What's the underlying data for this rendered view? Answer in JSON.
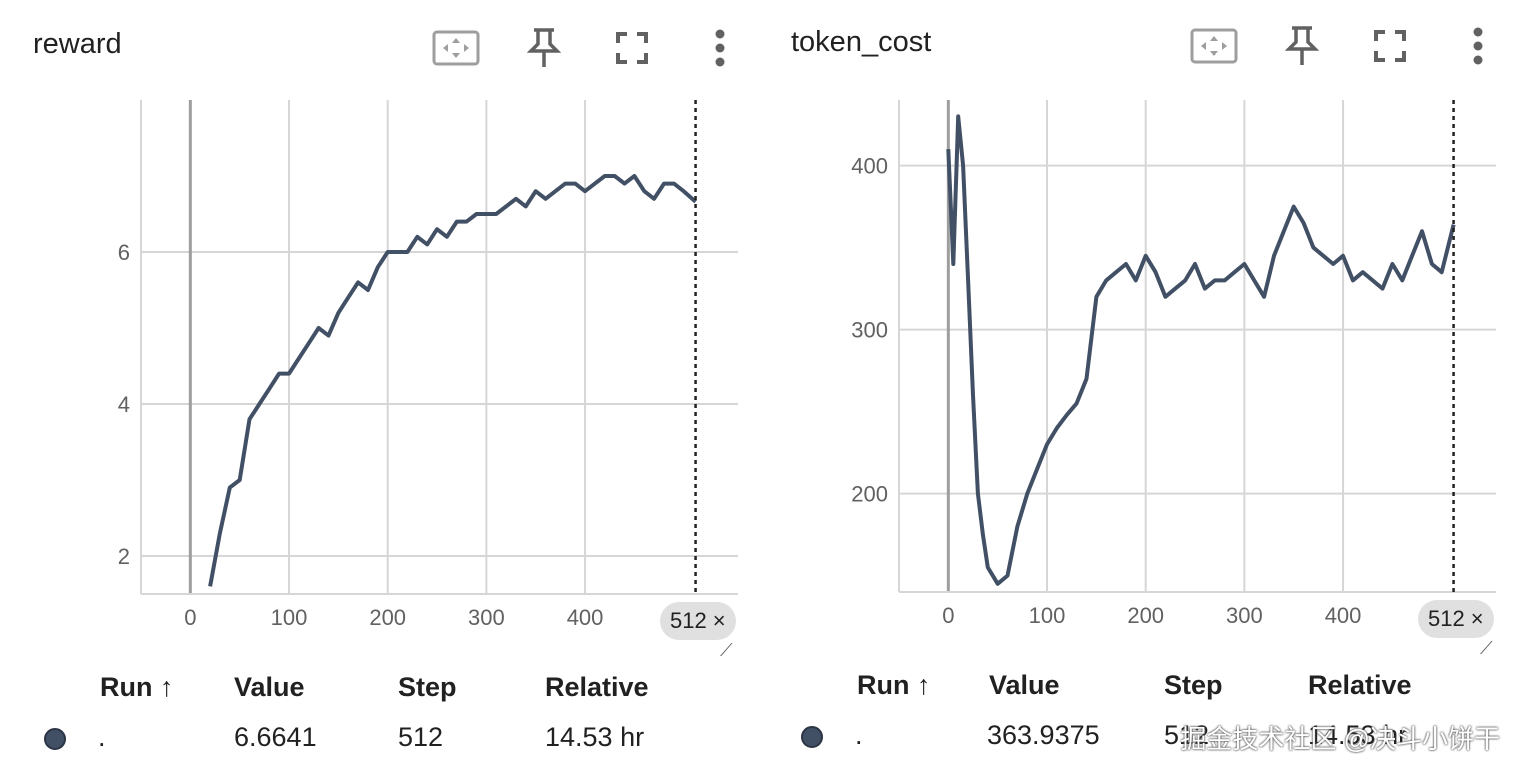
{
  "colors": {
    "line": "#425066",
    "grid": "#d6d6d6",
    "axis": "#9e9e9e",
    "cursor": "#212121"
  },
  "icons": [
    "fit-domain-icon",
    "pin-icon",
    "fullscreen-icon",
    "more-vert-icon"
  ],
  "cards": [
    {
      "title": "reward",
      "step_chip": "512",
      "chip_close": "×",
      "table": {
        "headers": {
          "run": "Run ↑",
          "value": "Value",
          "step": "Step",
          "relative": "Relative"
        },
        "row": {
          "run": ".",
          "value": "6.6641",
          "step": "512",
          "relative": "14.53 hr"
        }
      }
    },
    {
      "title": "token_cost",
      "step_chip": "512",
      "chip_close": "×",
      "table": {
        "headers": {
          "run": "Run ↑",
          "value": "Value",
          "step": "Step",
          "relative": "Relative"
        },
        "row": {
          "run": ".",
          "value": "363.9375",
          "step": "512",
          "relative": "14.53 hr"
        }
      }
    }
  ],
  "watermark": "掘金技术社区 @决斗小饼干",
  "chart_data": [
    {
      "type": "line",
      "title": "reward",
      "xlabel": "",
      "ylabel": "",
      "xlim": [
        -50,
        555
      ],
      "ylim": [
        1.5,
        8
      ],
      "x_ticks": [
        0,
        100,
        200,
        300,
        400
      ],
      "y_ticks": [
        2,
        4,
        6
      ],
      "grid": true,
      "cursor_step": 512,
      "series": [
        {
          "x": [
            20,
            30,
            40,
            50,
            60,
            70,
            80,
            90,
            100,
            110,
            120,
            130,
            140,
            150,
            160,
            170,
            180,
            190,
            200,
            210,
            220,
            230,
            240,
            250,
            260,
            270,
            280,
            290,
            300,
            310,
            320,
            330,
            340,
            350,
            360,
            370,
            380,
            390,
            400,
            410,
            420,
            430,
            440,
            450,
            460,
            470,
            480,
            490,
            500,
            512
          ],
          "y": [
            1.6,
            2.3,
            2.9,
            3.0,
            3.8,
            4.0,
            4.2,
            4.4,
            4.4,
            4.6,
            4.8,
            5.0,
            4.9,
            5.2,
            5.4,
            5.6,
            5.5,
            5.8,
            6.0,
            6.0,
            6.0,
            6.2,
            6.1,
            6.3,
            6.2,
            6.4,
            6.4,
            6.5,
            6.5,
            6.5,
            6.6,
            6.7,
            6.6,
            6.8,
            6.7,
            6.8,
            6.9,
            6.9,
            6.8,
            6.9,
            7.0,
            7.0,
            6.9,
            7.0,
            6.8,
            6.7,
            6.9,
            6.9,
            6.8,
            6.66
          ]
        }
      ]
    },
    {
      "type": "line",
      "title": "token_cost",
      "xlabel": "",
      "ylabel": "",
      "xlim": [
        -50,
        555
      ],
      "ylim": [
        140,
        440
      ],
      "x_ticks": [
        0,
        100,
        200,
        300,
        400
      ],
      "y_ticks": [
        200,
        300,
        400
      ],
      "grid": true,
      "cursor_step": 512,
      "series": [
        {
          "x": [
            0,
            5,
            10,
            15,
            20,
            25,
            30,
            35,
            40,
            50,
            60,
            70,
            80,
            90,
            100,
            110,
            120,
            130,
            140,
            150,
            160,
            170,
            180,
            190,
            200,
            210,
            220,
            230,
            240,
            250,
            260,
            270,
            280,
            290,
            300,
            310,
            320,
            330,
            340,
            350,
            360,
            370,
            380,
            390,
            400,
            410,
            420,
            430,
            440,
            450,
            460,
            470,
            480,
            490,
            500,
            512
          ],
          "y": [
            410,
            340,
            430,
            400,
            330,
            260,
            200,
            175,
            155,
            145,
            150,
            180,
            200,
            215,
            230,
            240,
            248,
            255,
            270,
            320,
            330,
            335,
            340,
            330,
            345,
            335,
            320,
            325,
            330,
            340,
            325,
            330,
            330,
            335,
            340,
            330,
            320,
            345,
            360,
            375,
            365,
            350,
            345,
            340,
            345,
            330,
            335,
            330,
            325,
            340,
            330,
            345,
            360,
            340,
            335,
            364
          ]
        }
      ]
    }
  ]
}
